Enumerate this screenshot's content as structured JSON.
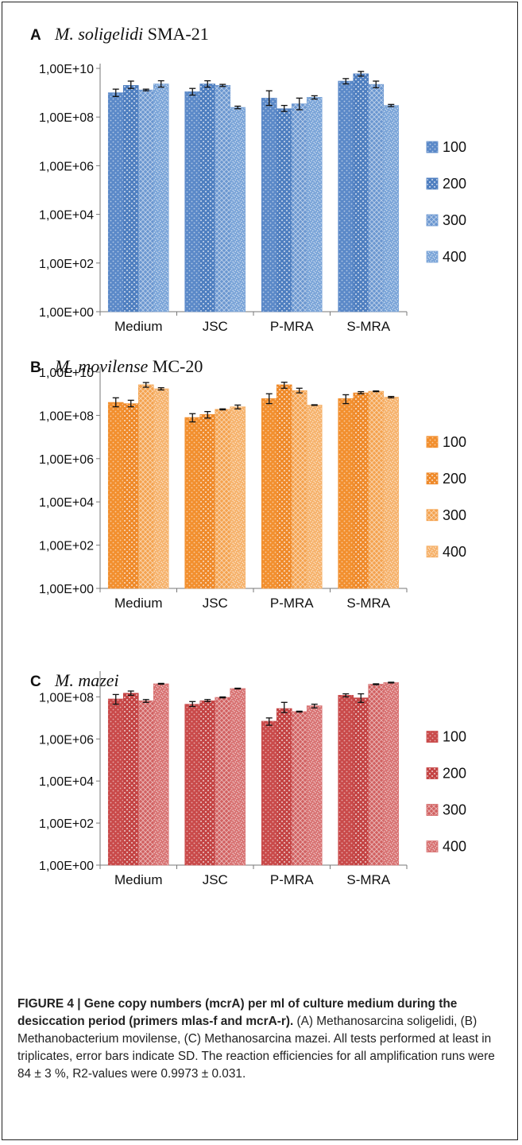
{
  "figure": {
    "caption_lead": "FIGURE 4 | Gene copy numbers (mcrA) per ml of culture medium during the desiccation period (primers mlas-f and mcrA-r).",
    "caption_body": "(A) Methanosarcina soligelidi, (B) Methanobacterium movilense, (C) Methanosarcina mazei. All tests performed at least in triplicates, error bars indicate SD. The reaction efficiencies for all amplification runs were 84 ± 3 %, R2-values were 0.9973 ± 0.031."
  },
  "chart_data": [
    {
      "type": "bar",
      "panel": "A",
      "title": "M. soligelidi SMA-21",
      "yscale": "log",
      "ylim": [
        1,
        10000000000
      ],
      "yticks": [
        "1,00E+00",
        "1,00E+02",
        "1,00E+04",
        "1,00E+06",
        "1,00E+08",
        "1,00E+10"
      ],
      "categories": [
        "Medium",
        "JSC",
        "P-MRA",
        "S-MRA"
      ],
      "series": [
        {
          "name": "100",
          "values": [
            1000000000,
            1100000000,
            600000000,
            3000000000
          ],
          "err_low": [
            700000000,
            800000000,
            300000000,
            2300000000
          ],
          "err_high": [
            1400000000,
            1500000000,
            1200000000,
            3800000000
          ],
          "color": "#5b89c8"
        },
        {
          "name": "200",
          "values": [
            2000000000,
            2300000000,
            220000000,
            6000000000
          ],
          "err_low": [
            1500000000,
            1700000000,
            170000000,
            4800000000
          ],
          "err_high": [
            3000000000,
            3100000000,
            300000000,
            7500000000
          ],
          "color": "#4f7fc0"
        },
        {
          "name": "300",
          "values": [
            1300000000,
            2000000000,
            350000000,
            2200000000
          ],
          "err_low": [
            1200000000,
            1800000000,
            200000000,
            1600000000
          ],
          "err_high": [
            1400000000,
            2200000000,
            600000000,
            3000000000
          ],
          "color": "#6a96d0"
        },
        {
          "name": "400",
          "values": [
            2300000000,
            250000000,
            650000000,
            300000000
          ],
          "err_low": [
            1700000000,
            220000000,
            550000000,
            270000000
          ],
          "err_high": [
            3100000000,
            280000000,
            750000000,
            330000000
          ],
          "color": "#7aa4d8"
        }
      ],
      "legend_position": "right"
    },
    {
      "type": "bar",
      "panel": "B",
      "title": "M. movilense MC-20",
      "yscale": "log",
      "ylim": [
        1,
        10000000000
      ],
      "yticks": [
        "1,00E+00",
        "1,00E+02",
        "1,00E+04",
        "1,00E+06",
        "1,00E+08",
        "1,00E+10"
      ],
      "categories": [
        "Medium",
        "JSC",
        "P-MRA",
        "S-MRA"
      ],
      "series": [
        {
          "name": "100",
          "values": [
            400000000,
            80000000,
            600000000,
            600000000
          ],
          "err_low": [
            250000000,
            50000000,
            350000000,
            350000000
          ],
          "err_high": [
            650000000,
            120000000,
            1000000000,
            900000000
          ],
          "color": "#f28f2e"
        },
        {
          "name": "200",
          "values": [
            350000000,
            110000000,
            2600000000,
            1100000000
          ],
          "err_low": [
            250000000,
            75000000,
            1800000000,
            1000000000
          ],
          "err_high": [
            500000000,
            150000000,
            3400000000,
            1250000000
          ],
          "color": "#ef8a2a"
        },
        {
          "name": "300",
          "values": [
            2600000000,
            190000000,
            1400000000,
            1300000000
          ],
          "err_low": [
            2000000000,
            180000000,
            1100000000,
            1250000000
          ],
          "err_high": [
            3300000000,
            200000000,
            1800000000,
            1350000000
          ],
          "color": "#f4a24e"
        },
        {
          "name": "400",
          "values": [
            1700000000,
            250000000,
            300000000,
            700000000
          ],
          "err_low": [
            1500000000,
            200000000,
            290000000,
            650000000
          ],
          "err_high": [
            1900000000,
            300000000,
            310000000,
            750000000
          ],
          "color": "#f6b26b"
        }
      ],
      "legend_position": "right"
    },
    {
      "type": "bar",
      "panel": "C",
      "title": "M. mazei",
      "yscale": "log",
      "ylim": [
        1,
        1000000000
      ],
      "yticks": [
        "1,00E+00",
        "1,00E+02",
        "1,00E+04",
        "1,00E+06",
        "1,00E+08"
      ],
      "categories": [
        "Medium",
        "JSC",
        "P-MRA",
        "S-MRA"
      ],
      "series": [
        {
          "name": "100",
          "values": [
            80000000,
            45000000,
            7000000,
            120000000
          ],
          "err_low": [
            45000000,
            35000000,
            4500000,
            100000000
          ],
          "err_high": [
            130000000,
            60000000,
            10000000,
            140000000
          ],
          "color": "#c94a4a"
        },
        {
          "name": "200",
          "values": [
            150000000,
            65000000,
            28000000,
            90000000
          ],
          "err_low": [
            120000000,
            60000000,
            18000000,
            55000000
          ],
          "err_high": [
            190000000,
            75000000,
            55000000,
            140000000
          ],
          "color": "#c44444"
        },
        {
          "name": "300",
          "values": [
            65000000,
            95000000,
            20000000,
            400000000
          ],
          "err_low": [
            55000000,
            90000000,
            19000000,
            380000000
          ],
          "err_high": [
            75000000,
            100000000,
            21000000,
            420000000
          ],
          "color": "#d16060"
        },
        {
          "name": "400",
          "values": [
            420000000,
            250000000,
            38000000,
            480000000
          ],
          "err_low": [
            400000000,
            240000000,
            30000000,
            460000000
          ],
          "err_high": [
            440000000,
            260000000,
            45000000,
            500000000
          ],
          "color": "#d87272"
        }
      ],
      "legend_position": "right"
    }
  ]
}
